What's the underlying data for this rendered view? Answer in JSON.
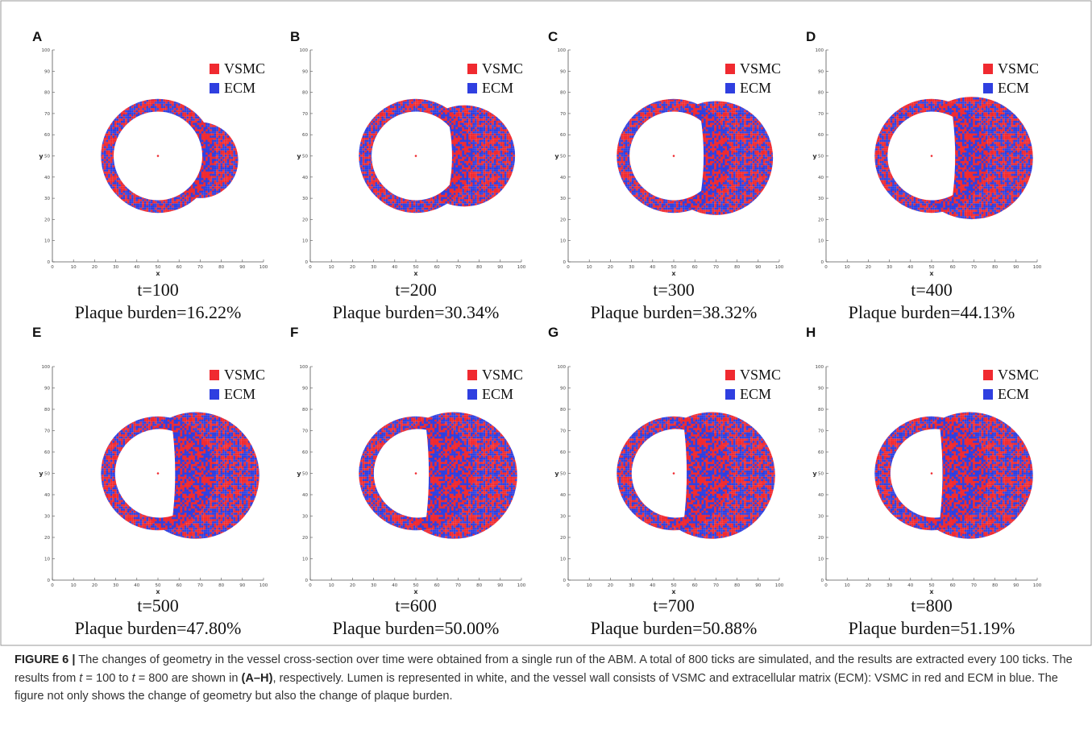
{
  "panels": [
    {
      "letter": "A",
      "time": "t=100",
      "burden": "Plaque burden=16.22%"
    },
    {
      "letter": "B",
      "time": "t=200",
      "burden": "Plaque burden=30.34%"
    },
    {
      "letter": "C",
      "time": "t=300",
      "burden": "Plaque burden=38.32%"
    },
    {
      "letter": "D",
      "time": "t=400",
      "burden": "Plaque burden=44.13%"
    },
    {
      "letter": "E",
      "time": "t=500",
      "burden": "Plaque burden=47.80%"
    },
    {
      "letter": "F",
      "time": "t=600",
      "burden": "Plaque burden=50.00%"
    },
    {
      "letter": "G",
      "time": "t=700",
      "burden": "Plaque burden=50.88%"
    },
    {
      "letter": "H",
      "time": "t=800",
      "burden": "Plaque burden=51.19%"
    }
  ],
  "legend": [
    "VSMC",
    "ECM"
  ],
  "axis": {
    "ticks": [
      0,
      10,
      20,
      30,
      40,
      50,
      60,
      70,
      80,
      90,
      100
    ],
    "x_label": "x",
    "y_label": "y"
  },
  "caption": {
    "label": "FIGURE 6 |",
    "parts": [
      " The changes of geometry in the vessel cross-section over time were obtained from a single run of the ABM. A total of 800 ticks are simulated, and the results are extracted every 100 ticks. The results from ",
      "t",
      " = 100 to ",
      "t",
      " = 800 are shown in ",
      "(A–H)",
      ", respectively. Lumen is represented in white, and the vessel wall consists of VSMC and extracellular matrix (ECM): VSMC in red and ECM in blue. The figure not only shows the change of geometry but also the change of plaque burden."
    ]
  }
}
